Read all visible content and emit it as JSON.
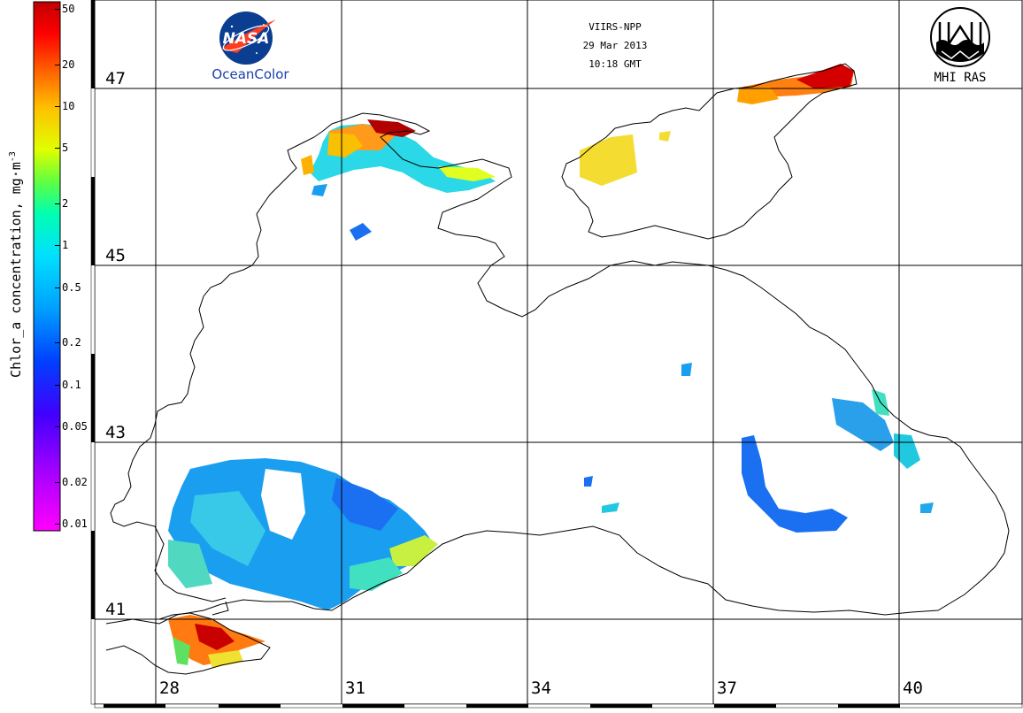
{
  "header": {
    "sensor": "VIIRS-NPP",
    "date": "29 Mar 2013",
    "time": "10:18 GMT"
  },
  "logos": {
    "left": {
      "badge": "NASA",
      "caption": "OceanColor",
      "icon": "nasa-meatball-icon"
    },
    "right": {
      "caption": "MHI RAS",
      "icon": "mhi-ras-emblem-icon"
    }
  },
  "colorbar": {
    "title": "Chlor_a concentration, mg·m",
    "title_exponent": "-3",
    "ticks": [
      "50",
      "20",
      "10",
      "5",
      "2",
      "1",
      "0.5",
      "0.2",
      "0.1",
      "0.05",
      "0.02",
      "0.01"
    ],
    "colors": [
      "#ff00ff",
      "#c000ff",
      "#4000ff",
      "#0040ff",
      "#00a0ff",
      "#00e0ff",
      "#00ffb0",
      "#60ff40",
      "#e0ff00",
      "#ffc000",
      "#ff6000",
      "#ff0000",
      "#c00000"
    ]
  },
  "axes": {
    "lat_labels": [
      "47",
      "45",
      "43",
      "41"
    ],
    "lon_labels": [
      "28",
      "31",
      "34",
      "37",
      "40"
    ]
  },
  "map": {
    "region": "Black Sea",
    "land_color": "#ffffff",
    "coast_color": "#000000",
    "grid_color": "#000000"
  }
}
